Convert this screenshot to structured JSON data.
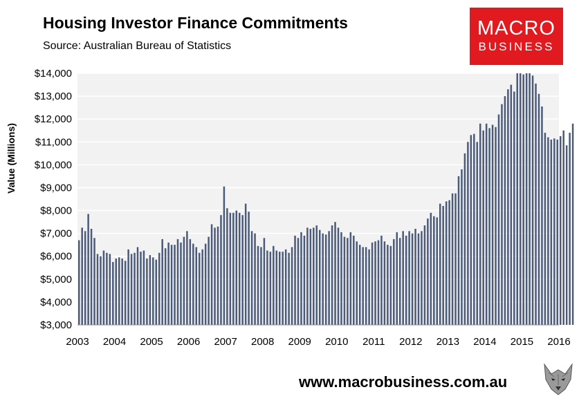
{
  "header": {
    "title": "Housing Investor Finance Commitments",
    "subtitle": "Source: Australian Bureau of Statistics"
  },
  "logo": {
    "line1": "MACRO",
    "line2": "BUSINESS",
    "color": "#e01a1f"
  },
  "footer": {
    "url": "www.macrobusiness.com.au"
  },
  "colors": {
    "bar": "#4a5a78",
    "plot_bg": "#f2f2f2",
    "grid": "#ffffff"
  },
  "chart_data": {
    "type": "bar",
    "title": "Housing Investor Finance Commitments",
    "ylabel": "Value (Millions)",
    "xlabel": "",
    "ylim": [
      3000,
      14000
    ],
    "y_ticks": [
      "$3,000",
      "$4,000",
      "$5,000",
      "$6,000",
      "$7,000",
      "$8,000",
      "$9,000",
      "$10,000",
      "$11,000",
      "$12,000",
      "$13,000",
      "$14,000"
    ],
    "x_ticks": [
      "2003",
      "2004",
      "2005",
      "2006",
      "2007",
      "2008",
      "2009",
      "2010",
      "2011",
      "2012",
      "2013",
      "2014",
      "2015",
      "2016"
    ],
    "x_start": "2003-01",
    "frequency": "monthly",
    "series": [
      {
        "values": [
          6700,
          7250,
          7100,
          7850,
          7200,
          6800,
          6100,
          6000,
          6250,
          6150,
          6100,
          5750,
          5900,
          5950,
          5900,
          5800,
          6300,
          6100,
          6150,
          6400,
          6200,
          6250,
          5900,
          6050,
          5950,
          5850,
          6150,
          6750,
          6350,
          6600,
          6500,
          6500,
          6750,
          6600,
          6850,
          7100,
          6750,
          6550,
          6400,
          6150,
          6300,
          6550,
          6850,
          7400,
          7250,
          7300,
          7800,
          9050,
          8100,
          7900,
          7900,
          8000,
          7900,
          7800,
          8300,
          7950,
          7100,
          7000,
          6450,
          6400,
          6800,
          6250,
          6200,
          6450,
          6250,
          6200,
          6200,
          6300,
          6150,
          6400,
          6900,
          6800,
          7050,
          6900,
          7250,
          7200,
          7250,
          7350,
          7150,
          7000,
          6950,
          7100,
          7350,
          7500,
          7250,
          7050,
          6850,
          6800,
          7050,
          6900,
          6650,
          6500,
          6400,
          6400,
          6300,
          6600,
          6650,
          6700,
          6900,
          6650,
          6500,
          6450,
          6750,
          7050,
          6800,
          7100,
          6900,
          7100,
          7000,
          7200,
          7000,
          7100,
          7350,
          7650,
          7900,
          7750,
          7700,
          8300,
          8200,
          8400,
          8450,
          8750,
          8750,
          9500,
          9800,
          10500,
          11000,
          11300,
          11350,
          11000,
          11800,
          11500,
          11800,
          11600,
          11750,
          11650,
          12200,
          12650,
          13000,
          13300,
          13500,
          13200,
          14000,
          14200,
          13950,
          14000,
          14000,
          13900,
          13550,
          13100,
          12550,
          11400,
          11200,
          11100,
          11150,
          11100,
          11250,
          11500,
          10850,
          11400,
          11800
        ]
      }
    ]
  }
}
